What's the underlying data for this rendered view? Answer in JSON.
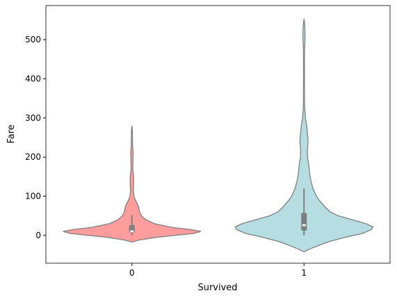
{
  "chart_data": {
    "type": "violin",
    "x_label": "Survived",
    "y_label": "Fare",
    "categories": [
      "0",
      "1"
    ],
    "ylim": [
      -71,
      587
    ],
    "yticks": [
      0,
      100,
      200,
      300,
      400,
      500
    ],
    "edge_color": "#7f7f7f",
    "series": [
      {
        "name": "0",
        "color": "#ff9d9d",
        "density": {
          "y": [
            -17,
            -12,
            -5,
            0,
            5,
            10,
            15,
            20,
            30,
            40,
            50,
            60,
            70,
            80,
            90,
            100,
            115,
            130,
            150,
            170,
            190,
            210,
            230,
            250,
            270,
            280
          ],
          "width": [
            0,
            0.1,
            0.35,
            0.62,
            0.9,
            1.0,
            0.85,
            0.6,
            0.33,
            0.2,
            0.14,
            0.11,
            0.1,
            0.08,
            0.05,
            0.03,
            0.02,
            0.025,
            0.025,
            0.012,
            0.015,
            0.018,
            0.01,
            0.008,
            0.006,
            0
          ]
        },
        "box": {
          "whisker_low": 0,
          "q1": 7.9,
          "median": 10.5,
          "q3": 26,
          "whisker_high": 52
        }
      },
      {
        "name": "1",
        "color": "#b5dde2",
        "density": {
          "y": [
            -42,
            -35,
            -25,
            -15,
            -5,
            5,
            15,
            22,
            30,
            40,
            50,
            60,
            70,
            80,
            90,
            100,
            120,
            140,
            160,
            180,
            200,
            220,
            240,
            260,
            280,
            300,
            330,
            370,
            420,
            470,
            500,
            520,
            540,
            553
          ],
          "width": [
            0,
            0.08,
            0.22,
            0.38,
            0.6,
            0.85,
            0.98,
            1.0,
            0.9,
            0.7,
            0.5,
            0.38,
            0.32,
            0.27,
            0.22,
            0.18,
            0.13,
            0.1,
            0.08,
            0.07,
            0.05,
            0.05,
            0.06,
            0.05,
            0.04,
            0.02,
            0.01,
            0.008,
            0.007,
            0.008,
            0.015,
            0.015,
            0.01,
            0
          ]
        },
        "box": {
          "whisker_low": 0,
          "q1": 12.5,
          "median": 26,
          "q3": 57,
          "whisker_high": 120
        }
      }
    ]
  }
}
